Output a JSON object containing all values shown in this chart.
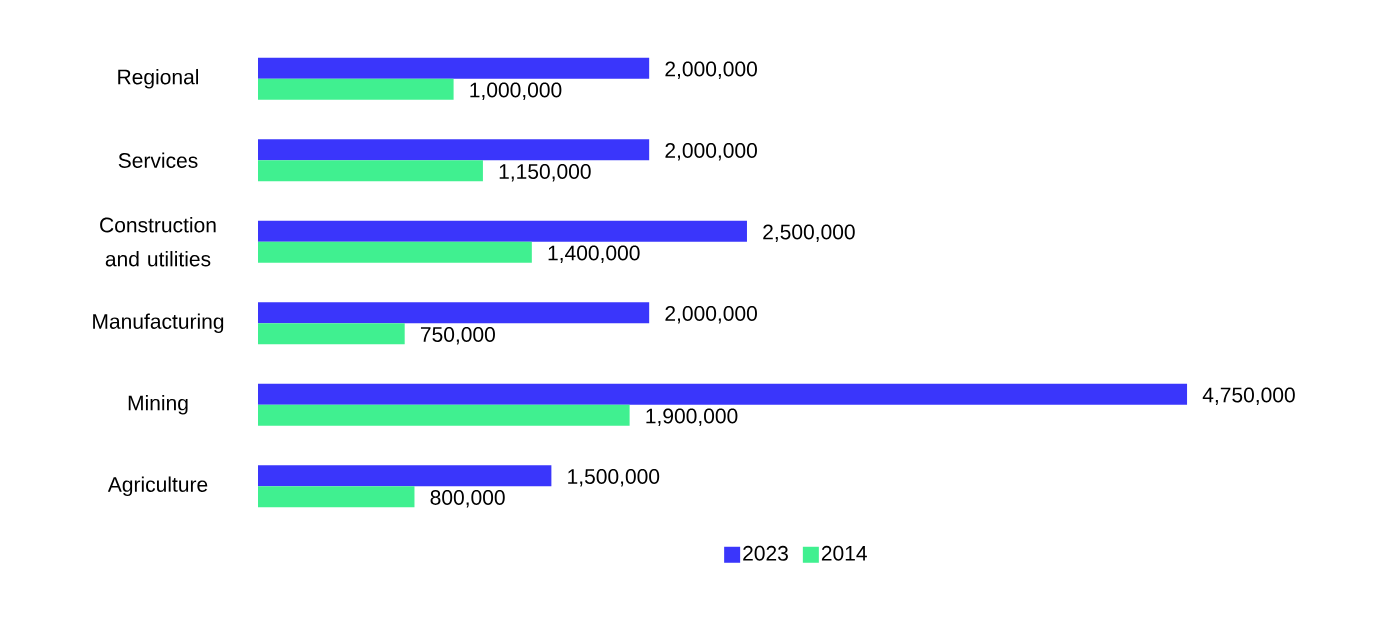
{
  "chart_data": {
    "type": "bar",
    "orientation": "horizontal",
    "legend": "bottom",
    "categories": [
      "Regional",
      "Services",
      "Construction and utilities",
      "Manufacturing",
      "Mining",
      "Agriculture"
    ],
    "series": [
      {
        "name": "2023",
        "color": "#3a36fb",
        "values": [
          2000000,
          2000000,
          2500000,
          2000000,
          4750000,
          1500000
        ],
        "value_labels": [
          "2,000,000",
          "2,000,000",
          "2,500,000",
          "2,000,000",
          "4,750,000",
          "1,500,000"
        ]
      },
      {
        "name": "2014",
        "color": "#40f090",
        "values": [
          1000000,
          1150000,
          1400000,
          750000,
          1900000,
          800000
        ],
        "value_labels": [
          "1,000,000",
          "1,150,000",
          "1,400,000",
          "750,000",
          "1,900,000",
          "800,000"
        ]
      }
    ]
  }
}
